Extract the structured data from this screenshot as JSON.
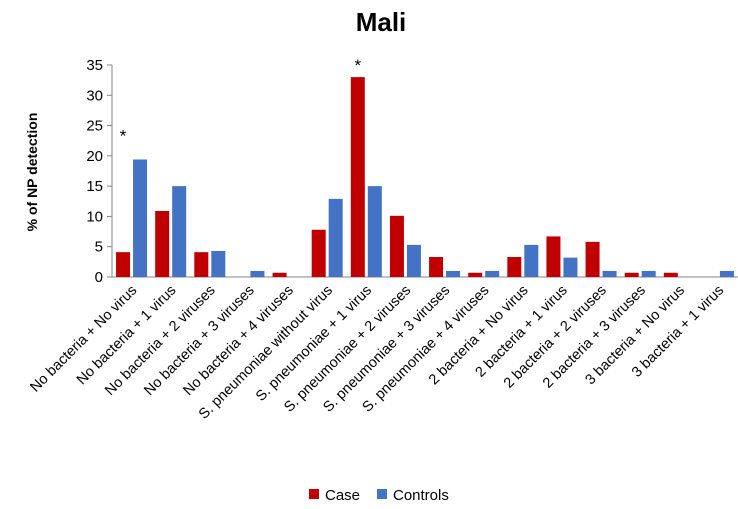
{
  "chart_data": {
    "type": "bar",
    "title": "Mali",
    "ylabel": "% of NP detection",
    "xlabel": "",
    "ylim": [
      0,
      35
    ],
    "yticks": [
      0,
      5,
      10,
      15,
      20,
      25,
      30,
      35
    ],
    "grid": false,
    "legend_position": "bottom",
    "categories": [
      "No bacteria + No virus",
      "No bacteria + 1 virus",
      "No bacteria + 2 viruses",
      "No bacteria + 3 viruses",
      "No bacteria + 4 viruses",
      "S. pneumoniae without virus",
      "S. pneumoniae + 1 virus",
      "S. pneumoniae + 2 viruses",
      "S. pneumoniae + 3 viruses",
      "S. pneumoniae + 4 viruses",
      "2 bacteria + No virus",
      "2 bacteria + 1 virus",
      "2 bacteria + 2 viruses",
      "2 bacteria + 3 viruses",
      "3 bacteria + No virus",
      "3 bacteria + 1 virus"
    ],
    "series": [
      {
        "name": "Case",
        "color": "#c00000",
        "values": [
          4.1,
          10.9,
          4.1,
          0,
          0.7,
          7.8,
          33.0,
          10.1,
          3.3,
          0.7,
          3.3,
          6.7,
          5.8,
          0.7,
          0.7,
          0
        ]
      },
      {
        "name": "Controls",
        "color": "#4472c4",
        "values": [
          19.4,
          15.0,
          4.3,
          1.0,
          0,
          12.9,
          15.0,
          5.3,
          1.0,
          1.0,
          5.3,
          3.2,
          1.0,
          1.0,
          0,
          1.0
        ]
      }
    ],
    "annotations": [
      {
        "text": "*",
        "category_index": 0
      },
      {
        "text": "*",
        "category_index": 6
      }
    ]
  }
}
